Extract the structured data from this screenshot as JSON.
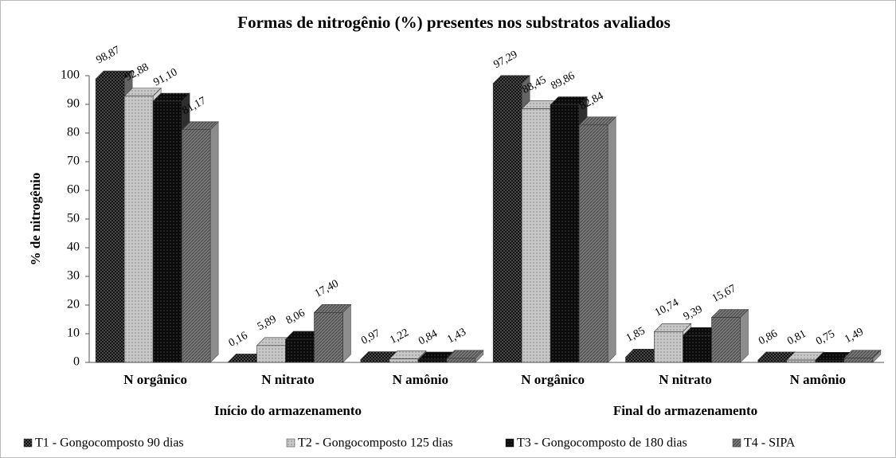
{
  "chart_data": {
    "type": "bar3d",
    "title": "Formas de nitrogênio (%) presentes nos substratos avaliados",
    "y_label": "% de nitrogênio",
    "categories": [
      "N orgânico",
      "N nitrato",
      "N amônio",
      "N orgânico",
      "N nitrato",
      "N amônio"
    ],
    "category_groups": [
      "Início do armazenamento",
      "Final do armazenamento"
    ],
    "series": [
      {
        "name": "T1 - Gongocomposto 90 dias",
        "color": "#4a4a4a",
        "values": [
          98.87,
          0.16,
          0.97,
          97.29,
          1.85,
          0.86
        ],
        "value_labels": [
          "98,87",
          "0,16",
          "0,97",
          "97,29",
          "1,85",
          "0,86"
        ]
      },
      {
        "name": "T2 - Gongocomposto 125 dias",
        "color": "#c8c8c8",
        "values": [
          92.88,
          5.89,
          1.22,
          88.45,
          10.74,
          0.81
        ],
        "value_labels": [
          "92,88",
          "5,89",
          "1,22",
          "88,45",
          "10,74",
          "0,81"
        ]
      },
      {
        "name": "T3 - Gongocomposto de 180 dias",
        "color": "#0a0a0a",
        "values": [
          91.1,
          8.06,
          0.84,
          89.86,
          9.39,
          0.75
        ],
        "value_labels": [
          "91,10",
          "8,06",
          "0,84",
          "89,86",
          "9,39",
          "0,75"
        ]
      },
      {
        "name": "T4 - SIPA",
        "color": "#7a7a7a",
        "values": [
          81.17,
          17.4,
          1.43,
          82.84,
          15.67,
          1.49
        ],
        "value_labels": [
          "81,17",
          "17,40",
          "1,43",
          "82,84",
          "15,67",
          "1,49"
        ]
      }
    ],
    "ylim": [
      0,
      100
    ],
    "yticks": [
      0,
      10,
      20,
      30,
      40,
      50,
      60,
      70,
      80,
      90,
      100
    ],
    "legend": "bottom"
  }
}
